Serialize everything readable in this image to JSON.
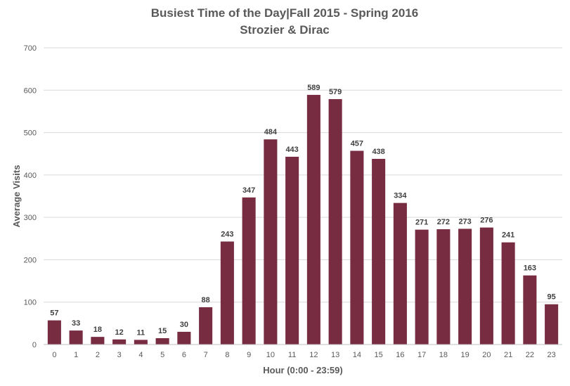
{
  "chart_data": {
    "type": "bar",
    "title": "Busiest Time of the Day|Fall 2015 - Spring 2016",
    "subtitle": "Strozier & Dirac",
    "xlabel": "Hour (0:00 - 23:59)",
    "ylabel": "Average  Visits",
    "ylim": [
      0,
      700
    ],
    "yticks": [
      0,
      100,
      200,
      300,
      400,
      500,
      600,
      700
    ],
    "grid": true,
    "legend": "none",
    "bar_color": "#772c42",
    "categories": [
      "0",
      "1",
      "2",
      "3",
      "4",
      "5",
      "6",
      "7",
      "8",
      "9",
      "10",
      "11",
      "12",
      "13",
      "14",
      "15",
      "16",
      "17",
      "18",
      "19",
      "20",
      "21",
      "22",
      "23"
    ],
    "values": [
      57,
      33,
      18,
      12,
      11,
      15,
      30,
      88,
      243,
      347,
      484,
      443,
      589,
      579,
      457,
      438,
      334,
      271,
      272,
      273,
      276,
      241,
      163,
      95
    ]
  }
}
